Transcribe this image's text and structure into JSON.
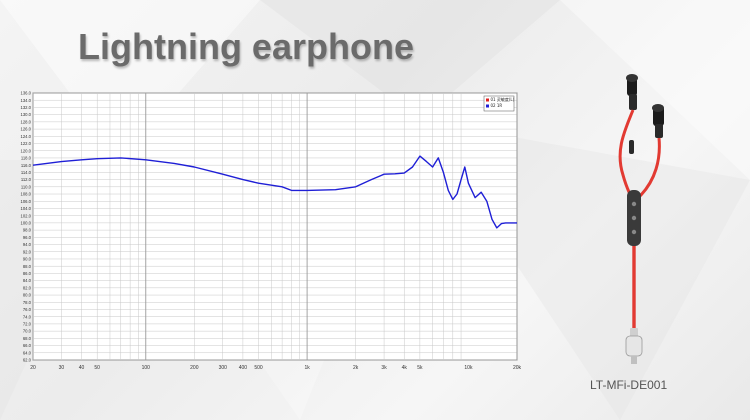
{
  "slide": {
    "title": "Lightning earphone",
    "model": "LT-MFi-DE001"
  },
  "colors": {
    "curve": "#1f1fd6",
    "cable": "#e23a32",
    "title": "#6b6b6b"
  },
  "chart_data": {
    "type": "line",
    "x_scale": "log",
    "xlim": [
      20,
      20000
    ],
    "ylim": [
      62,
      136
    ],
    "grid": true,
    "legend_position": "top-right",
    "x_ticks": [
      "20",
      "30",
      "40",
      "50",
      "100",
      "200",
      "300",
      "400",
      "500",
      "1k",
      "2k",
      "3k",
      "4k",
      "5k",
      "10k",
      "20k"
    ],
    "legend": [
      "01 灵敏度(L)",
      "02 1R"
    ],
    "series": [
      {
        "x": [
          20,
          30,
          40,
          50,
          70,
          100,
          150,
          200,
          300,
          400,
          500,
          700,
          800,
          1000,
          1500,
          2000,
          2500,
          3000,
          3500,
          4000,
          4500,
          5000,
          5500,
          6000,
          6500,
          7000,
          7500,
          8000,
          8500,
          9000,
          9500,
          10000,
          11000,
          12000,
          13000,
          14000,
          15000,
          16000,
          17000,
          18000,
          19000,
          20000
        ],
        "y": [
          116,
          117,
          117.5,
          117.8,
          118,
          117.5,
          116.5,
          115.5,
          113.5,
          112,
          111,
          110,
          109,
          109,
          109.2,
          110,
          112,
          113.5,
          113.6,
          113.8,
          115.5,
          118.5,
          117,
          115.5,
          118,
          114,
          109,
          106.5,
          108,
          112,
          115.5,
          111,
          107,
          108.5,
          106,
          101,
          98.6,
          99.8,
          100,
          100,
          100,
          100
        ]
      }
    ]
  }
}
